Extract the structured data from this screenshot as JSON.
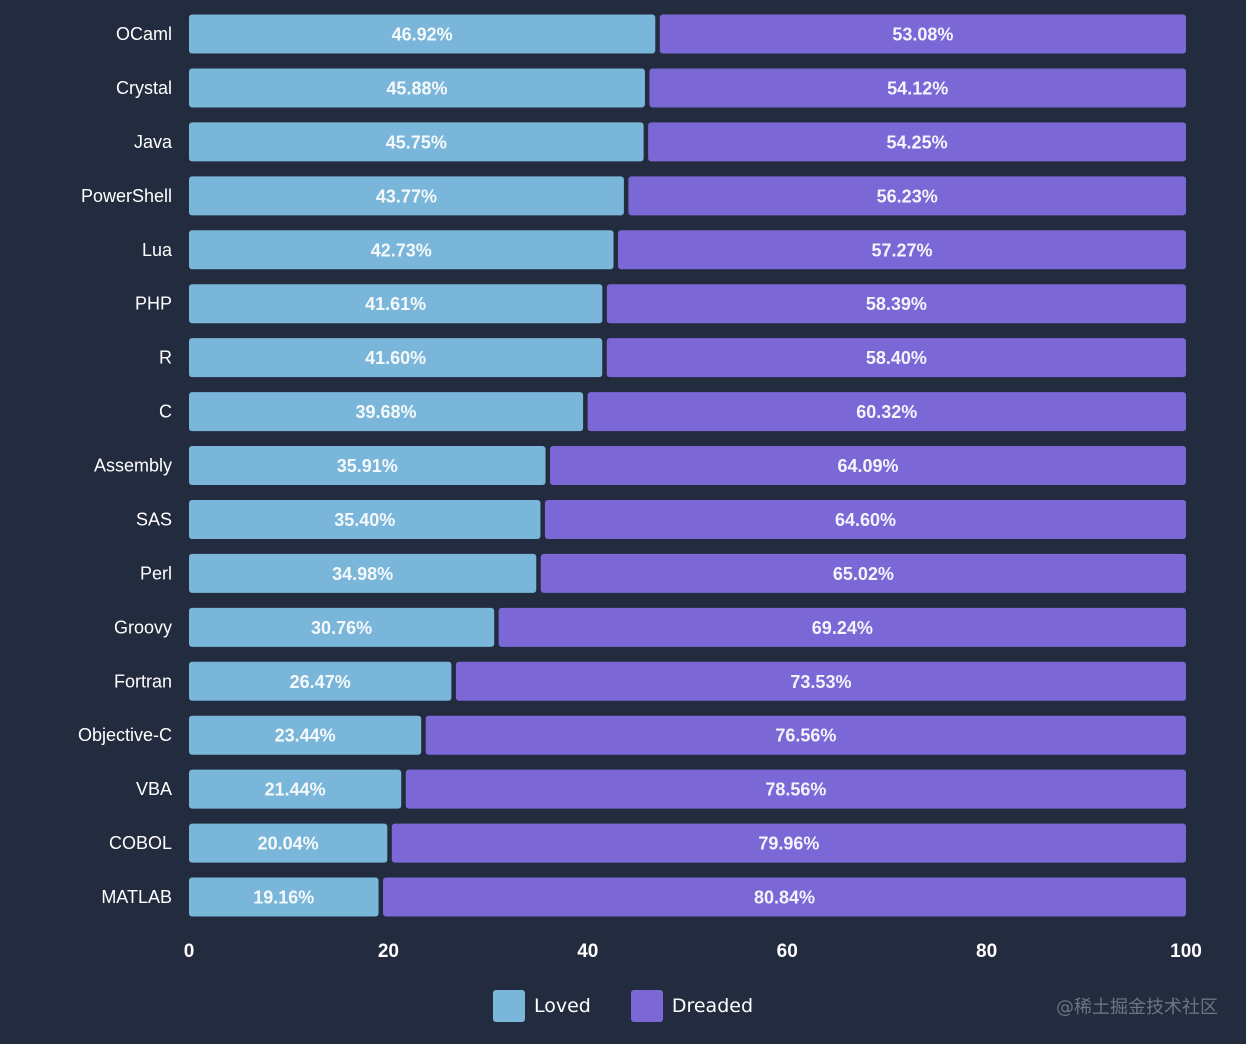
{
  "chart_data": {
    "type": "bar",
    "orientation": "horizontal",
    "stacked": true,
    "categories": [
      "OCaml",
      "Crystal",
      "Java",
      "PowerShell",
      "Lua",
      "PHP",
      "R",
      "C",
      "Assembly",
      "SAS",
      "Perl",
      "Groovy",
      "Fortran",
      "Objective-C",
      "VBA",
      "COBOL",
      "MATLAB"
    ],
    "series": [
      {
        "name": "Loved",
        "color": "#7ab6d9",
        "values": [
          46.92,
          45.88,
          45.75,
          43.77,
          42.73,
          41.61,
          41.6,
          39.68,
          35.91,
          35.4,
          34.98,
          30.76,
          26.47,
          23.44,
          21.44,
          20.04,
          19.16
        ],
        "labels": [
          "46.92%",
          "45.88%",
          "45.75%",
          "43.77%",
          "42.73%",
          "41.61%",
          "41.60%",
          "39.68%",
          "35.91%",
          "35.40%",
          "34.98%",
          "30.76%",
          "26.47%",
          "23.44%",
          "21.44%",
          "20.04%",
          "19.16%"
        ]
      },
      {
        "name": "Dreaded",
        "color": "#7b68d6",
        "values": [
          53.08,
          54.12,
          54.25,
          56.23,
          57.27,
          58.39,
          58.4,
          60.32,
          64.09,
          64.6,
          65.02,
          69.24,
          73.53,
          76.56,
          78.56,
          79.96,
          80.84
        ],
        "labels": [
          "53.08%",
          "54.12%",
          "54.25%",
          "56.23%",
          "57.27%",
          "58.39%",
          "58.40%",
          "60.32%",
          "64.09%",
          "64.60%",
          "65.02%",
          "69.24%",
          "73.53%",
          "76.56%",
          "78.56%",
          "79.96%",
          "80.84%"
        ]
      }
    ],
    "xlim": [
      0,
      100
    ],
    "xticks": [
      "0",
      "20",
      "40",
      "60",
      "80",
      "100"
    ],
    "title": "",
    "xlabel": "",
    "ylabel": "",
    "legend_position": "bottom-center",
    "grid": false
  },
  "legend": {
    "loved_label": "Loved",
    "dreaded_label": "Dreaded",
    "loved_color": "#7ab6d9",
    "dreaded_color": "#7b68d6"
  },
  "watermark": "@稀土掘金技术社区"
}
